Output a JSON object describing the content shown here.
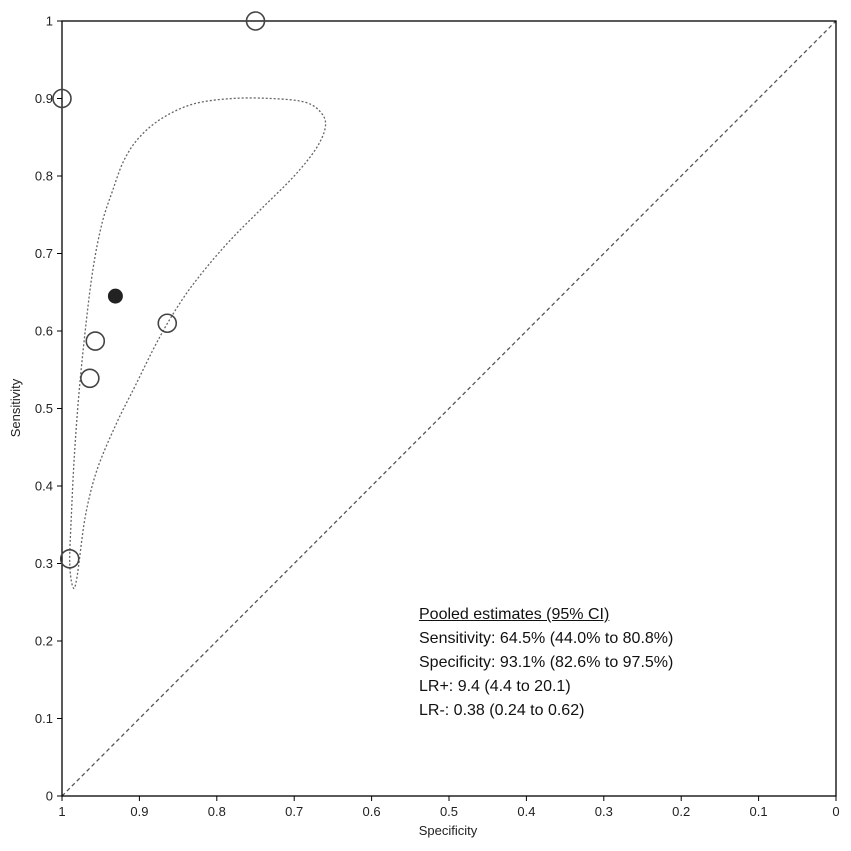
{
  "chart_data": {
    "type": "scatter",
    "xlabel": "Specificity",
    "ylabel": "Sensitivity",
    "xlim": [
      1,
      0
    ],
    "ylim": [
      0,
      1
    ],
    "x_reversed": true,
    "x_ticks": [
      "1",
      "0.9",
      "0.8",
      "0.7",
      "0.6",
      "0.5",
      "0.4",
      "0.3",
      "0.2",
      "0.1",
      "0"
    ],
    "y_ticks": [
      "0",
      "0.1",
      "0.2",
      "0.3",
      "0.4",
      "0.5",
      "0.6",
      "0.7",
      "0.8",
      "0.9",
      "1"
    ],
    "grid": false,
    "diagonal_reference": true,
    "studies": [
      {
        "specificity": 0.75,
        "sensitivity": 1.0
      },
      {
        "specificity": 1.0,
        "sensitivity": 0.9
      },
      {
        "specificity": 0.957,
        "sensitivity": 0.587
      },
      {
        "specificity": 0.964,
        "sensitivity": 0.539
      },
      {
        "specificity": 0.864,
        "sensitivity": 0.61
      },
      {
        "specificity": 0.99,
        "sensitivity": 0.306
      }
    ],
    "pooled_point": {
      "specificity": 0.931,
      "sensitivity": 0.645
    },
    "confidence_region": [
      [
        0.99,
        0.3
      ],
      [
        0.986,
        0.27
      ],
      [
        0.981,
        0.28
      ],
      [
        0.97,
        0.36
      ],
      [
        0.955,
        0.42
      ],
      [
        0.93,
        0.48
      ],
      [
        0.905,
        0.53
      ],
      [
        0.875,
        0.59
      ],
      [
        0.845,
        0.64
      ],
      [
        0.815,
        0.68
      ],
      [
        0.78,
        0.72
      ],
      [
        0.74,
        0.76
      ],
      [
        0.7,
        0.8
      ],
      [
        0.672,
        0.835
      ],
      [
        0.66,
        0.862
      ],
      [
        0.664,
        0.88
      ],
      [
        0.685,
        0.895
      ],
      [
        0.73,
        0.9
      ],
      [
        0.78,
        0.9
      ],
      [
        0.83,
        0.893
      ],
      [
        0.87,
        0.875
      ],
      [
        0.9,
        0.85
      ],
      [
        0.92,
        0.82
      ],
      [
        0.935,
        0.78
      ],
      [
        0.948,
        0.74
      ],
      [
        0.96,
        0.68
      ],
      [
        0.97,
        0.6
      ],
      [
        0.978,
        0.52
      ],
      [
        0.984,
        0.44
      ],
      [
        0.988,
        0.36
      ]
    ],
    "summary": {
      "heading": "Pooled estimates (95% CI)",
      "sensitivity": "Sensitivity: 64.5% (44.0% to 80.8%)",
      "specificity": "Specificity: 93.1% (82.6% to 97.5%)",
      "lr_pos": "LR+: 9.4 (4.4 to 20.1)",
      "lr_neg": "LR-: 0.38 (0.24 to 0.62)"
    },
    "colors": {
      "frame": "#000000",
      "diagonal": "#555555",
      "region": "#666666",
      "study_marker": "#444444",
      "pooled_marker": "#222222"
    }
  }
}
